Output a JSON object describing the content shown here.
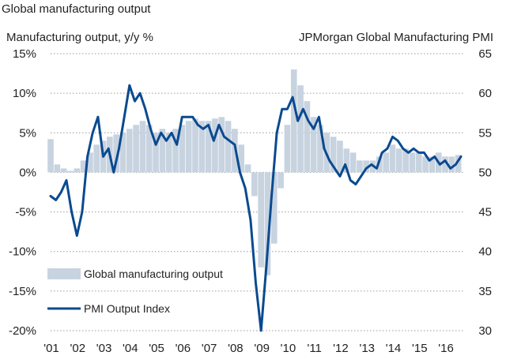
{
  "chart_data": {
    "type": "bar+line",
    "title": "Global manufacturing output",
    "left_axis_title": "Manufacturing output, y/y %",
    "right_axis_title": "JPMorgan Global Manufacturing PMI",
    "left_ylim": [
      -20,
      15
    ],
    "right_ylim": [
      30,
      65
    ],
    "left_ticks": [
      "15%",
      "10%",
      "5%",
      "0%",
      "-5%",
      "-10%",
      "-15%",
      "-20%"
    ],
    "left_tick_values": [
      15,
      10,
      5,
      0,
      -5,
      -10,
      -15,
      -20
    ],
    "right_ticks": [
      "65",
      "60",
      "55",
      "50",
      "45",
      "40",
      "35",
      "30"
    ],
    "right_tick_values": [
      65,
      60,
      55,
      50,
      45,
      40,
      35,
      30
    ],
    "x_ticks": [
      "'01",
      "'02",
      "'03",
      "'04",
      "'05",
      "'06",
      "'07",
      "'08",
      "'09",
      "'10",
      "'11",
      "'12",
      "'13",
      "'14",
      "'15",
      "'16"
    ],
    "x_tick_years": [
      2001,
      2002,
      2003,
      2004,
      2005,
      2006,
      2007,
      2008,
      2009,
      2010,
      2011,
      2012,
      2013,
      2014,
      2015,
      2016
    ],
    "xlim": [
      2001.0,
      2016.75
    ],
    "grid": "horizontal dotted",
    "legend_position": "bottom-left",
    "colors": {
      "bars": "#c8d3e0",
      "line": "#0a4a8f",
      "grid": "#9a9a9a",
      "text": "#222222"
    },
    "series": [
      {
        "name": "Global manufacturing output",
        "kind": "bar",
        "axis": "left",
        "x": [
          2001.0,
          2001.25,
          2001.5,
          2001.75,
          2002.0,
          2002.25,
          2002.5,
          2002.75,
          2003.0,
          2003.25,
          2003.5,
          2003.75,
          2004.0,
          2004.25,
          2004.5,
          2004.75,
          2005.0,
          2005.25,
          2005.5,
          2005.75,
          2006.0,
          2006.25,
          2006.5,
          2006.75,
          2007.0,
          2007.25,
          2007.5,
          2007.75,
          2008.0,
          2008.25,
          2008.5,
          2008.75,
          2009.0,
          2009.25,
          2009.5,
          2009.75,
          2010.0,
          2010.25,
          2010.5,
          2010.75,
          2011.0,
          2011.25,
          2011.5,
          2011.75,
          2012.0,
          2012.25,
          2012.5,
          2012.75,
          2013.0,
          2013.25,
          2013.5,
          2013.75,
          2014.0,
          2014.25,
          2014.5,
          2014.75,
          2015.0,
          2015.25,
          2015.5,
          2015.75,
          2016.0,
          2016.25,
          2016.5
        ],
        "values": [
          4.2,
          1.0,
          0.5,
          0.2,
          0.5,
          1.5,
          2.5,
          3.5,
          4.0,
          4.5,
          4.8,
          5.0,
          5.5,
          6.0,
          6.5,
          6.0,
          5.0,
          5.5,
          5.0,
          5.5,
          6.0,
          6.5,
          6.8,
          6.5,
          6.5,
          6.8,
          7.0,
          6.5,
          5.5,
          3.5,
          1.0,
          -3.0,
          -12.0,
          -13.0,
          -9.0,
          -2.0,
          6.0,
          13.0,
          11.0,
          9.0,
          7.0,
          6.0,
          5.0,
          4.5,
          4.0,
          3.0,
          2.5,
          1.5,
          1.5,
          1.5,
          2.0,
          2.5,
          3.5,
          3.0,
          3.0,
          2.5,
          2.5,
          2.0,
          2.0,
          2.5,
          2.0,
          2.0,
          2.2
        ]
      },
      {
        "name": "PMI Output Index",
        "kind": "line",
        "axis": "right",
        "x": [
          2001.0,
          2001.2,
          2001.4,
          2001.6,
          2001.8,
          2002.0,
          2002.2,
          2002.4,
          2002.6,
          2002.8,
          2003.0,
          2003.2,
          2003.4,
          2003.6,
          2003.8,
          2004.0,
          2004.2,
          2004.4,
          2004.6,
          2004.8,
          2005.0,
          2005.2,
          2005.4,
          2005.6,
          2005.8,
          2006.0,
          2006.2,
          2006.4,
          2006.6,
          2006.8,
          2007.0,
          2007.2,
          2007.4,
          2007.6,
          2007.8,
          2008.0,
          2008.2,
          2008.4,
          2008.6,
          2008.8,
          2009.0,
          2009.2,
          2009.4,
          2009.6,
          2009.8,
          2010.0,
          2010.2,
          2010.4,
          2010.6,
          2010.8,
          2011.0,
          2011.2,
          2011.4,
          2011.6,
          2011.8,
          2012.0,
          2012.2,
          2012.4,
          2012.6,
          2012.8,
          2013.0,
          2013.2,
          2013.4,
          2013.6,
          2013.8,
          2014.0,
          2014.2,
          2014.4,
          2014.6,
          2014.8,
          2015.0,
          2015.2,
          2015.4,
          2015.6,
          2015.8,
          2016.0,
          2016.2,
          2016.4,
          2016.6
        ],
        "values": [
          47.0,
          46.5,
          47.5,
          49.0,
          45.0,
          42.0,
          45.0,
          52.0,
          55.0,
          57.0,
          52.0,
          53.0,
          50.0,
          53.0,
          57.0,
          61.0,
          59.0,
          60.0,
          58.0,
          55.5,
          53.5,
          55.0,
          54.0,
          55.0,
          53.5,
          57.0,
          57.0,
          57.0,
          56.0,
          55.5,
          56.0,
          54.0,
          56.0,
          54.5,
          54.0,
          53.5,
          50.0,
          48.0,
          44.0,
          36.0,
          30.0,
          38.0,
          47.0,
          55.0,
          58.0,
          58.0,
          59.5,
          56.5,
          58.0,
          56.5,
          55.5,
          57.0,
          53.0,
          51.5,
          50.5,
          49.5,
          51.0,
          49.0,
          48.5,
          49.5,
          50.5,
          51.0,
          50.5,
          52.5,
          53.0,
          54.5,
          54.0,
          53.0,
          52.5,
          53.0,
          52.5,
          52.5,
          51.5,
          52.0,
          51.0,
          51.5,
          50.5,
          51.0,
          52.0
        ]
      }
    ]
  }
}
